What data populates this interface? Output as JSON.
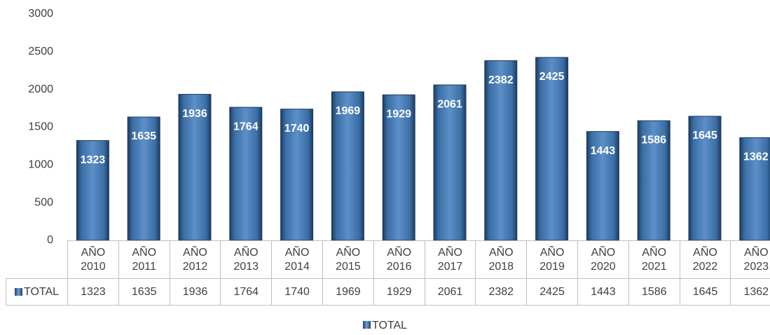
{
  "chart_data": {
    "type": "bar",
    "categories": [
      "AÑO 2010",
      "AÑO 2011",
      "AÑO 2012",
      "AÑO 2013",
      "AÑO 2014",
      "AÑO 2015",
      "AÑO 2016",
      "AÑO 2017",
      "AÑO 2018",
      "AÑO 2019",
      "AÑO 2020",
      "AÑO 2021",
      "AÑO 2022",
      "AÑO 2023"
    ],
    "series": [
      {
        "name": "TOTAL",
        "color": "#3a6ea5",
        "values": [
          1323,
          1635,
          1936,
          1764,
          1740,
          1969,
          1929,
          2061,
          2382,
          2425,
          1443,
          1586,
          1645,
          1362
        ]
      }
    ],
    "ylim": [
      0,
      3000
    ],
    "yticks": [
      0,
      500,
      1000,
      1500,
      2000,
      2500,
      3000
    ],
    "grid": false,
    "legend": "bottom",
    "data_table": true
  }
}
